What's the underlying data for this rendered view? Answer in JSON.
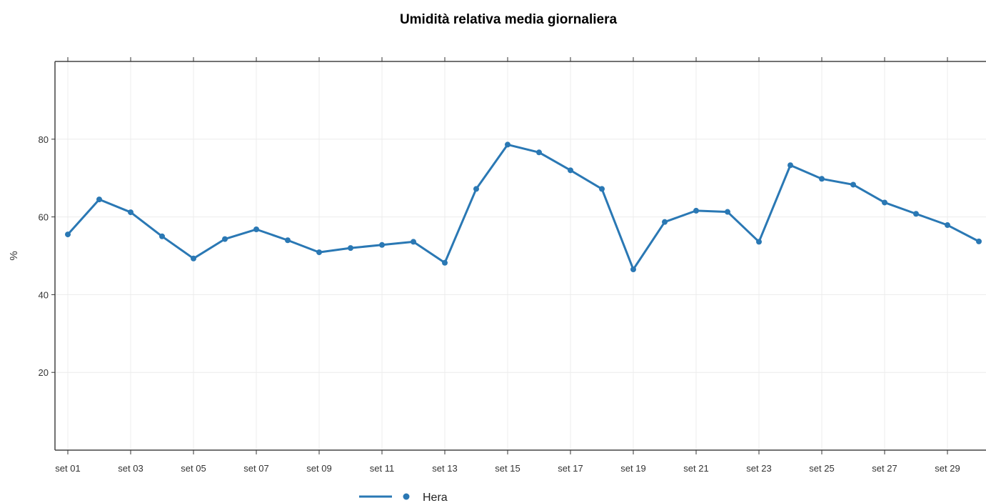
{
  "chart_data": {
    "type": "line",
    "title": "Umidità relativa media giornaliera",
    "ylabel": "%",
    "xlabel": "",
    "ylim": [
      0,
      100
    ],
    "yticks": [
      20,
      40,
      60,
      80
    ],
    "x": [
      "set 01",
      "set 02",
      "set 03",
      "set 04",
      "set 05",
      "set 06",
      "set 07",
      "set 08",
      "set 09",
      "set 10",
      "set 11",
      "set 12",
      "set 13",
      "set 14",
      "set 15",
      "set 16",
      "set 17",
      "set 18",
      "set 19",
      "set 20",
      "set 21",
      "set 22",
      "set 23",
      "set 24",
      "set 25",
      "set 26",
      "set 27",
      "set 28",
      "set 29",
      "set 30"
    ],
    "xtick_labels": [
      "set 01",
      "set 03",
      "set 05",
      "set 07",
      "set 09",
      "set 11",
      "set 13",
      "set 15",
      "set 17",
      "set 19",
      "set 21",
      "set 23",
      "set 25",
      "set 27",
      "set 29"
    ],
    "series": [
      {
        "name": "Hera",
        "color": "#2a78b4",
        "values": [
          55.5,
          64.5,
          61.2,
          55.0,
          49.3,
          54.3,
          56.8,
          54.0,
          50.9,
          52.0,
          52.8,
          53.6,
          48.2,
          67.2,
          78.6,
          76.6,
          72.0,
          67.2,
          46.5,
          58.7,
          61.6,
          61.3,
          53.6,
          73.3,
          69.8,
          68.3,
          63.7,
          60.8,
          57.9,
          53.7
        ]
      }
    ],
    "grid": true,
    "legend_position": "bottom"
  }
}
